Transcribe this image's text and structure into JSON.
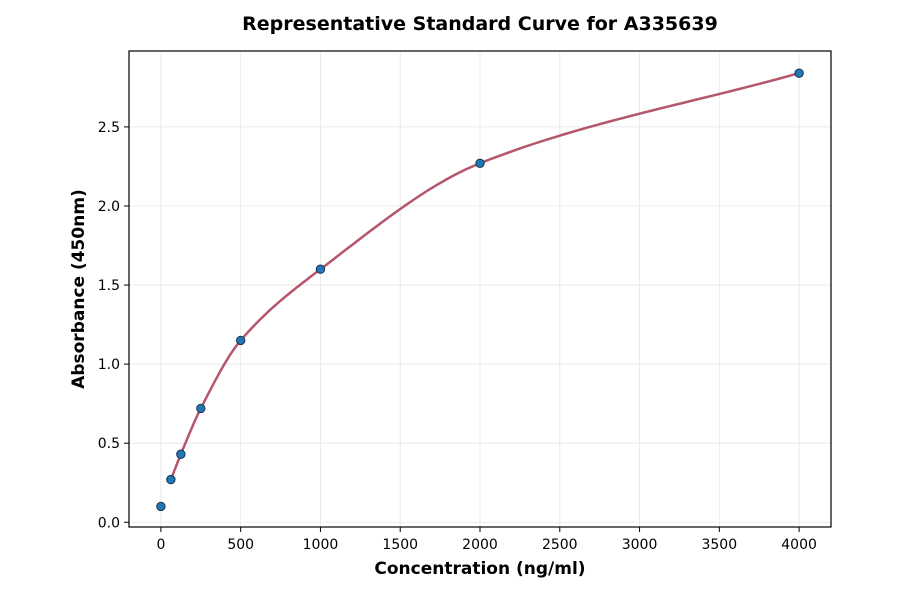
{
  "chart_data": {
    "type": "scatter",
    "title": "Representative Standard Curve for A335639",
    "xlabel": "Concentration (ng/ml)",
    "ylabel": "Absorbance (450nm)",
    "xlim": [
      -200,
      4200
    ],
    "ylim": [
      -0.03,
      2.98
    ],
    "xticks": [
      0,
      500,
      1000,
      1500,
      2000,
      2500,
      3000,
      3500,
      4000
    ],
    "xtick_labels": [
      "0",
      "500",
      "1000",
      "1500",
      "2000",
      "2500",
      "3000",
      "3500",
      "4000"
    ],
    "yticks": [
      0,
      0.5,
      1,
      1.5,
      2,
      2.5
    ],
    "ytick_labels": [
      "0.0",
      "0.5",
      "1.0",
      "1.5",
      "2.0",
      "2.5"
    ],
    "grid": true,
    "series": [
      {
        "type": "scatter",
        "x": [
          0,
          62.5,
          125,
          250,
          500,
          1000,
          2000,
          4000
        ],
        "y": [
          0.1,
          0.27,
          0.43,
          0.72,
          1.15,
          1.6,
          2.27,
          2.84
        ],
        "color": "#1f77b4"
      },
      {
        "type": "line",
        "fit": "curve",
        "x_start": 62.5,
        "x_end": 4000,
        "color": "#b5566a"
      }
    ]
  }
}
